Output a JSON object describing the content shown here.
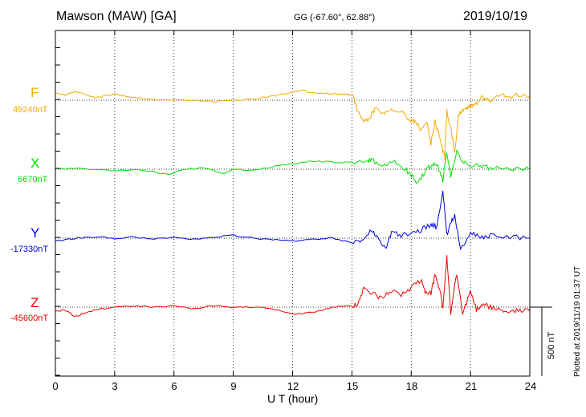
{
  "header": {
    "station": "Mawson (MAW)  [GA]",
    "coords": "GG (-67.60°,  62.88°)",
    "date": "2019/10/19"
  },
  "plotted_note": "Plotted at 2019/11/19 01:37 UT",
  "scale_label": "500 nT",
  "chart_data": {
    "type": "line",
    "xlabel": "U T (hour)",
    "xlim": [
      0,
      24
    ],
    "xticks": [
      0,
      3,
      6,
      9,
      12,
      15,
      18,
      21,
      24
    ],
    "y_scale_nT": 500,
    "grid": true,
    "series": [
      {
        "name": "F",
        "baseline_label": "49240nT",
        "color": "#f5a800",
        "offsets_nT": [
          [
            0,
            50
          ],
          [
            0.5,
            40
          ],
          [
            1,
            65
          ],
          [
            1.5,
            45
          ],
          [
            2,
            20
          ],
          [
            2.5,
            30
          ],
          [
            3,
            45
          ],
          [
            3.5,
            30
          ],
          [
            4,
            20
          ],
          [
            4.5,
            10
          ],
          [
            5,
            5
          ],
          [
            6,
            0
          ],
          [
            7,
            0
          ],
          [
            8,
            -10
          ],
          [
            8.5,
            -5
          ],
          [
            9,
            0
          ],
          [
            10,
            10
          ],
          [
            11,
            30
          ],
          [
            12,
            60
          ],
          [
            12.5,
            70
          ],
          [
            13,
            55
          ],
          [
            13.5,
            50
          ],
          [
            14,
            45
          ],
          [
            14.5,
            45
          ],
          [
            15,
            40
          ],
          [
            15.3,
            -80
          ],
          [
            15.6,
            -160
          ],
          [
            15.9,
            -130
          ],
          [
            16.2,
            -60
          ],
          [
            16.6,
            -100
          ],
          [
            17,
            -80
          ],
          [
            17.5,
            -70
          ],
          [
            17.9,
            -140
          ],
          [
            18.2,
            -160
          ],
          [
            18.5,
            -210
          ],
          [
            18.8,
            -170
          ],
          [
            19,
            -320
          ],
          [
            19.2,
            -150
          ],
          [
            19.5,
            -300
          ],
          [
            19.7,
            -420
          ],
          [
            19.8,
            -80
          ],
          [
            20,
            -200
          ],
          [
            20.2,
            -380
          ],
          [
            20.4,
            -100
          ],
          [
            20.6,
            -80
          ],
          [
            20.8,
            -60
          ],
          [
            21,
            -40
          ],
          [
            21.2,
            -40
          ],
          [
            21.6,
            20
          ],
          [
            22,
            0
          ],
          [
            22.5,
            40
          ],
          [
            23,
            20
          ],
          [
            23.5,
            40
          ],
          [
            24,
            30
          ]
        ]
      },
      {
        "name": "X",
        "baseline_label": "6670nT",
        "color": "#00e000",
        "offsets_nT": [
          [
            0,
            0
          ],
          [
            1,
            10
          ],
          [
            2,
            0
          ],
          [
            3,
            -10
          ],
          [
            4,
            0
          ],
          [
            5,
            -20
          ],
          [
            5.8,
            -40
          ],
          [
            6.5,
            0
          ],
          [
            7.5,
            10
          ],
          [
            8.5,
            -30
          ],
          [
            9,
            0
          ],
          [
            10,
            -10
          ],
          [
            11,
            20
          ],
          [
            12,
            40
          ],
          [
            13,
            60
          ],
          [
            14,
            50
          ],
          [
            15,
            50
          ],
          [
            15.8,
            60
          ],
          [
            16,
            70
          ],
          [
            16.5,
            10
          ],
          [
            17,
            60
          ],
          [
            17.5,
            20
          ],
          [
            18,
            -40
          ],
          [
            18.3,
            -100
          ],
          [
            18.7,
            -20
          ],
          [
            19,
            30
          ],
          [
            19.3,
            40
          ],
          [
            19.6,
            -80
          ],
          [
            19.8,
            120
          ],
          [
            20,
            -60
          ],
          [
            20.3,
            120
          ],
          [
            20.6,
            60
          ],
          [
            21,
            30
          ],
          [
            21.5,
            20
          ],
          [
            22,
            10
          ],
          [
            23,
            0
          ],
          [
            24,
            0
          ]
        ]
      },
      {
        "name": "Y",
        "baseline_label": "-17330nT",
        "color": "#0000dd",
        "offsets_nT": [
          [
            0,
            -20
          ],
          [
            1,
            0
          ],
          [
            2,
            10
          ],
          [
            3,
            0
          ],
          [
            4,
            10
          ],
          [
            5,
            -10
          ],
          [
            6,
            10
          ],
          [
            7,
            -10
          ],
          [
            8,
            10
          ],
          [
            9,
            20
          ],
          [
            9.5,
            10
          ],
          [
            10,
            0
          ],
          [
            11,
            -10
          ],
          [
            12,
            -20
          ],
          [
            13,
            -10
          ],
          [
            14,
            0
          ],
          [
            15,
            -30
          ],
          [
            15.5,
            -10
          ],
          [
            16,
            60
          ],
          [
            16.3,
            0
          ],
          [
            16.7,
            -80
          ],
          [
            17,
            40
          ],
          [
            17.5,
            20
          ],
          [
            18,
            40
          ],
          [
            18.5,
            60
          ],
          [
            19,
            100
          ],
          [
            19.3,
            80
          ],
          [
            19.6,
            340
          ],
          [
            19.8,
            20
          ],
          [
            20,
            120
          ],
          [
            20.2,
            160
          ],
          [
            20.5,
            -80
          ],
          [
            21,
            40
          ],
          [
            21.5,
            0
          ],
          [
            22,
            20
          ],
          [
            23,
            10
          ],
          [
            24,
            0
          ]
        ]
      },
      {
        "name": "Z",
        "baseline_label": "-45600nT",
        "color": "#ee0000",
        "offsets_nT": [
          [
            0,
            -30
          ],
          [
            0.5,
            -20
          ],
          [
            1,
            -70
          ],
          [
            1.5,
            -40
          ],
          [
            2,
            -20
          ],
          [
            3,
            0
          ],
          [
            4,
            10
          ],
          [
            5,
            0
          ],
          [
            6,
            10
          ],
          [
            7,
            -10
          ],
          [
            8,
            10
          ],
          [
            9,
            0
          ],
          [
            10,
            0
          ],
          [
            11,
            -10
          ],
          [
            12,
            -50
          ],
          [
            13,
            -40
          ],
          [
            14,
            0
          ],
          [
            15,
            10
          ],
          [
            15.3,
            20
          ],
          [
            15.6,
            140
          ],
          [
            16,
            100
          ],
          [
            16.5,
            60
          ],
          [
            17,
            120
          ],
          [
            17.5,
            90
          ],
          [
            18,
            140
          ],
          [
            18.5,
            200
          ],
          [
            18.7,
            110
          ],
          [
            19,
            100
          ],
          [
            19.2,
            230
          ],
          [
            19.5,
            80
          ],
          [
            19.6,
            -20
          ],
          [
            19.8,
            370
          ],
          [
            20,
            -40
          ],
          [
            20.3,
            240
          ],
          [
            20.6,
            -40
          ],
          [
            21,
            110
          ],
          [
            21.3,
            -20
          ],
          [
            21.6,
            20
          ],
          [
            22,
            0
          ],
          [
            22.5,
            -20
          ],
          [
            23,
            -40
          ],
          [
            23.5,
            -20
          ],
          [
            24,
            -30
          ]
        ]
      }
    ]
  }
}
